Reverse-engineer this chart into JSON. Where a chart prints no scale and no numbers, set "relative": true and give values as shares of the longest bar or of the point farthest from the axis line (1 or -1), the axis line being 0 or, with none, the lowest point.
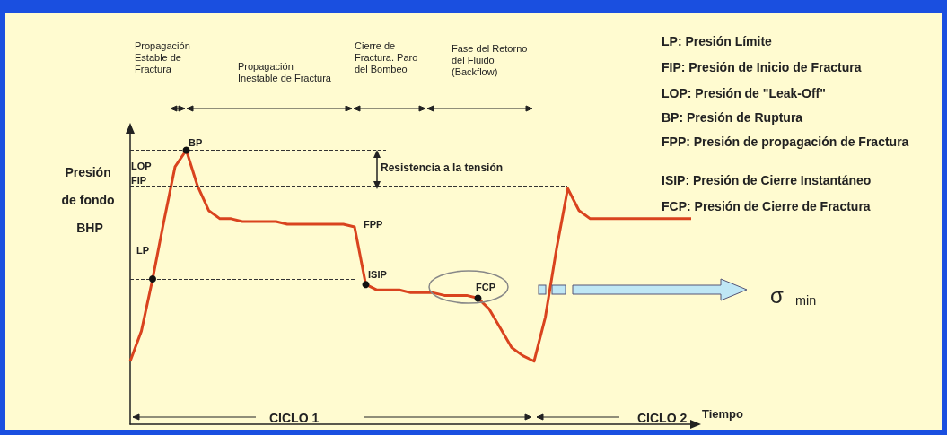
{
  "chart_data": {
    "type": "line",
    "relative": true,
    "xlabel": "Tiempo",
    "ylabel": "Presión de fondo BHP",
    "categories": [
      null,
      null,
      null,
      null,
      null,
      null,
      null,
      null,
      null,
      null,
      null,
      null,
      null,
      null,
      null,
      null,
      null,
      null,
      null,
      null,
      null,
      null,
      null,
      null,
      null,
      null,
      null,
      null,
      null,
      null,
      null,
      null,
      null,
      null,
      null,
      null,
      null,
      null,
      null,
      null,
      null,
      null,
      null,
      null,
      null,
      null,
      null,
      null,
      null,
      null,
      null
    ],
    "series": [
      {
        "color": "#d9431e",
        "marker": "none",
        "values": [
          0.23,
          0.34,
          0.53,
          0.74,
          0.94,
          1.0,
          0.87,
          0.78,
          0.75,
          0.75,
          0.74,
          0.74,
          0.74,
          0.74,
          0.73,
          0.73,
          0.73,
          0.73,
          0.73,
          0.73,
          0.72,
          0.51,
          0.49,
          0.49,
          0.49,
          0.48,
          0.48,
          0.48,
          0.47,
          0.47,
          0.47,
          0.46,
          0.42,
          0.35,
          0.28,
          0.25,
          0.23,
          0.39,
          0.64,
          0.86,
          0.78,
          0.75,
          0.75,
          0.75,
          0.75,
          0.75,
          0.75,
          0.75,
          0.75,
          0.75,
          0.75
        ]
      }
    ],
    "ref_lines": [
      {
        "axis": "y",
        "value": 1.0,
        "line_style": "dashed",
        "color": "#333333"
      },
      {
        "axis": "y",
        "value": 0.87,
        "line_style": "dashed",
        "color": "#333333"
      },
      {
        "axis": "y",
        "value": 0.53,
        "line_style": "dashed",
        "color": "#333333"
      }
    ],
    "annotations": [
      "Propagación Estable de Fractura",
      "Propagación Inestable de Fractura",
      "Cierre de Fractura. Paro del Bombeo",
      "Fase del Retorno del Fluido (Backflow)",
      "Resistencia a la tensión",
      "CICLO 1",
      "CICLO 2",
      "σ$_{min}$",
      "LP: Presión Límite",
      "FIP: Presión de Inicio de Fractura",
      "LOP: Presión de \"Leak-Off\"",
      "BP: Presión de Ruptura",
      "FPP: Presión de propagación de Fractura",
      "ISIP: Presión de Cierre Instantáneo",
      "FCP: Presión de Cierre de Fractura",
      {
        "text": "LP",
        "y": 0.53
      },
      "LOP",
      "FIP",
      {
        "text": "BP",
        "y": 1.0
      },
      "FPP",
      {
        "text": "ISIP",
        "y": 0.51
      },
      {
        "text": "FCP",
        "y": 0.46
      }
    ],
    "grid": false
  }
}
